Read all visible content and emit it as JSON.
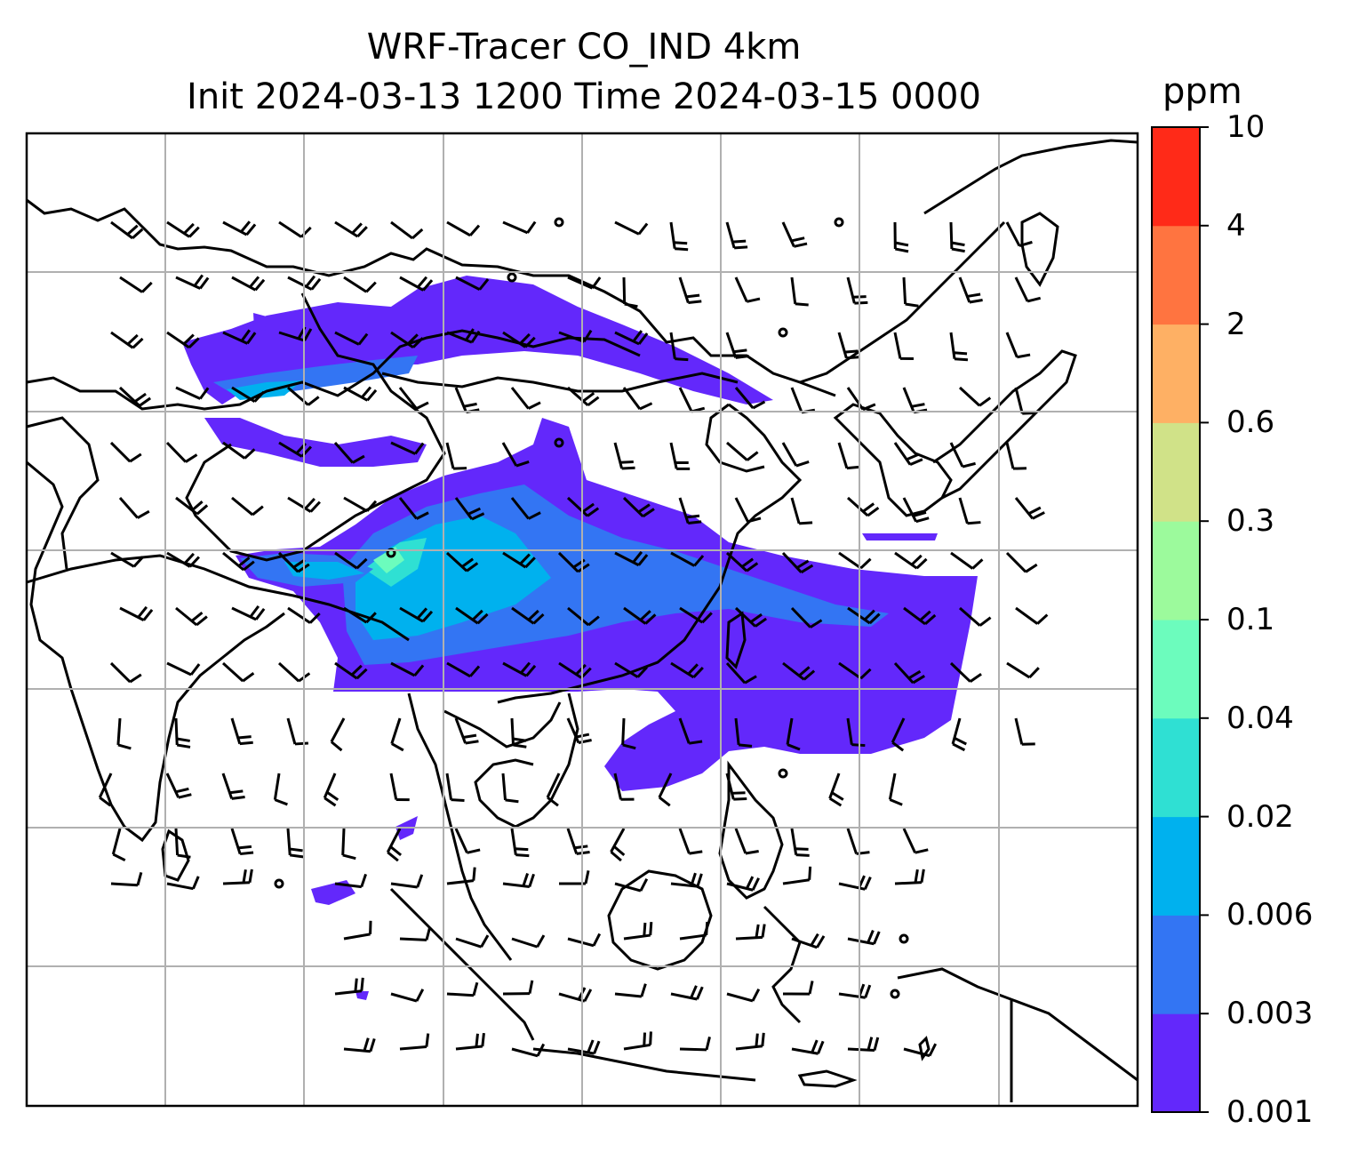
{
  "title": {
    "line1": "WRF-Tracer CO_IND 4km",
    "line2": "Init 2024-03-13 1200 Time 2024-03-15 0000"
  },
  "colorbar": {
    "unit": "ppm",
    "levels": [
      "0.001",
      "0.003",
      "0.006",
      "0.02",
      "0.04",
      "0.1",
      "0.3",
      "0.6",
      "2",
      "4",
      "10"
    ],
    "colors": [
      "#6328fb",
      "#3375f3",
      "#00b1ee",
      "#2fe0d3",
      "#6cfcbd",
      "#9cfa9c",
      "#d0e288",
      "#feb064",
      "#ff7440",
      "#ff2a18"
    ]
  },
  "map": {
    "plume_colors": {
      "lowest": "#6328fb",
      "low": "#3375f3",
      "mid": "#00b1ee",
      "high": "#2fe0d3",
      "highest": "#6cfcbd"
    },
    "coastline_color": "#000000",
    "gridline_color": "#b0b0b0",
    "wind_barb_color": "#000000"
  }
}
